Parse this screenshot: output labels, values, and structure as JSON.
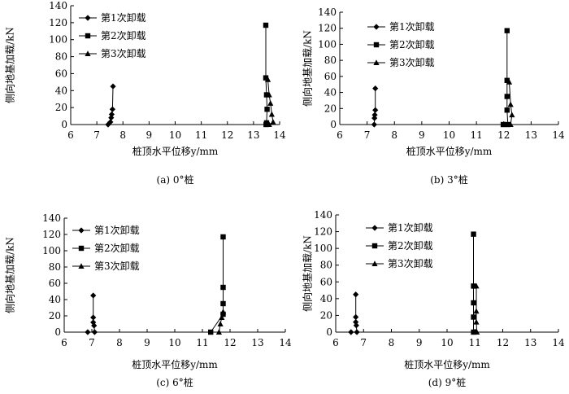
{
  "chart_data": [
    {
      "type": "scatter",
      "caption": "(a) 0°桩",
      "xlabel": "桩顶水平位移y/mm",
      "ylabel": "侧向地基加载/kN",
      "xlim": [
        6,
        14
      ],
      "ylim": [
        0,
        140
      ],
      "xticks": [
        6,
        7,
        8,
        9,
        10,
        11,
        12,
        13,
        14
      ],
      "yticks": [
        0,
        20,
        40,
        60,
        80,
        100,
        120,
        140
      ],
      "legend": "top-left",
      "series": [
        {
          "name": "第1次卸载",
          "marker": "diamond",
          "x": [
            7.62,
            7.6,
            7.57,
            7.55,
            7.52,
            7.43
          ],
          "y": [
            45,
            18,
            12,
            8,
            3,
            0
          ]
        },
        {
          "name": "第2次卸载",
          "marker": "square",
          "x": [
            13.47,
            13.47,
            13.5,
            13.52,
            13.5,
            13.48
          ],
          "y": [
            117,
            55,
            35,
            18,
            2,
            0
          ]
        },
        {
          "name": "第3次卸载",
          "marker": "triangle",
          "x": [
            13.55,
            13.6,
            13.65,
            13.7,
            13.75,
            13.6
          ],
          "y": [
            53,
            35,
            25,
            12,
            3,
            0
          ]
        }
      ]
    },
    {
      "type": "scatter",
      "caption": "(b) 3°桩",
      "xlabel": "桩顶水平位移y/mm",
      "ylabel": "侧向地基加载/kN",
      "xlim": [
        6,
        14
      ],
      "ylim": [
        0,
        140
      ],
      "xticks": [
        6,
        7,
        8,
        9,
        10,
        11,
        12,
        13,
        14
      ],
      "yticks": [
        0,
        20,
        40,
        60,
        80,
        100,
        120,
        140
      ],
      "legend": "top-left",
      "series": [
        {
          "name": "第1次卸载",
          "marker": "diamond",
          "x": [
            7.3,
            7.3,
            7.28,
            7.27,
            7.26
          ],
          "y": [
            45,
            18,
            12,
            8,
            0
          ]
        },
        {
          "name": "第2次卸载",
          "marker": "square",
          "x": [
            12.12,
            12.12,
            12.12,
            12.12,
            12.15,
            11.98
          ],
          "y": [
            117,
            55,
            35,
            18,
            0,
            0
          ]
        },
        {
          "name": "第3次卸载",
          "marker": "triangle",
          "x": [
            12.2,
            12.25,
            12.3,
            12.25
          ],
          "y": [
            53,
            25,
            12,
            0
          ]
        }
      ]
    },
    {
      "type": "scatter",
      "caption": "(c) 6°桩",
      "xlabel": "桩顶水平位移y/mm",
      "ylabel": "侧向地基加载/kN",
      "xlim": [
        6,
        14
      ],
      "ylim": [
        0,
        140
      ],
      "xticks": [
        6,
        7,
        8,
        9,
        10,
        11,
        12,
        13,
        14
      ],
      "yticks": [
        0,
        20,
        40,
        60,
        80,
        100,
        120,
        140
      ],
      "legend": "top-left",
      "series": [
        {
          "name": "第1次卸载",
          "marker": "diamond",
          "x": [
            7.05,
            7.05,
            7.05,
            7.08,
            7.1,
            6.85
          ],
          "y": [
            45,
            18,
            12,
            8,
            0,
            0
          ]
        },
        {
          "name": "第2次卸载",
          "marker": "square",
          "x": [
            11.75,
            11.75,
            11.75,
            11.75,
            11.3
          ],
          "y": [
            117,
            55,
            35,
            22,
            0
          ]
        },
        {
          "name": "第3次卸载",
          "marker": "triangle",
          "x": [
            11.75,
            11.7,
            11.65,
            11.6
          ],
          "y": [
            25,
            18,
            10,
            0
          ]
        }
      ]
    },
    {
      "type": "scatter",
      "caption": "(d) 9°桩",
      "xlabel": "桩顶水平位移y/mm",
      "ylabel": "侧向地基加载/kN",
      "xlim": [
        6,
        14
      ],
      "ylim": [
        0,
        140
      ],
      "xticks": [
        6,
        7,
        8,
        9,
        10,
        11,
        12,
        13,
        14
      ],
      "yticks": [
        0,
        20,
        40,
        60,
        80,
        100,
        120,
        140
      ],
      "legend": "top-left",
      "series": [
        {
          "name": "第1次卸载",
          "marker": "diamond",
          "x": [
            6.72,
            6.72,
            6.72,
            6.74,
            6.76,
            6.55
          ],
          "y": [
            45,
            18,
            12,
            8,
            0,
            0
          ]
        },
        {
          "name": "第2次卸载",
          "marker": "square",
          "x": [
            10.95,
            10.95,
            10.95,
            10.95,
            10.95
          ],
          "y": [
            117,
            55,
            35,
            18,
            0
          ]
        },
        {
          "name": "第3次卸载",
          "marker": "triangle",
          "x": [
            11.05,
            11.05,
            11.05,
            11.07,
            11.05
          ],
          "y": [
            55,
            25,
            12,
            0,
            0
          ]
        }
      ]
    }
  ]
}
